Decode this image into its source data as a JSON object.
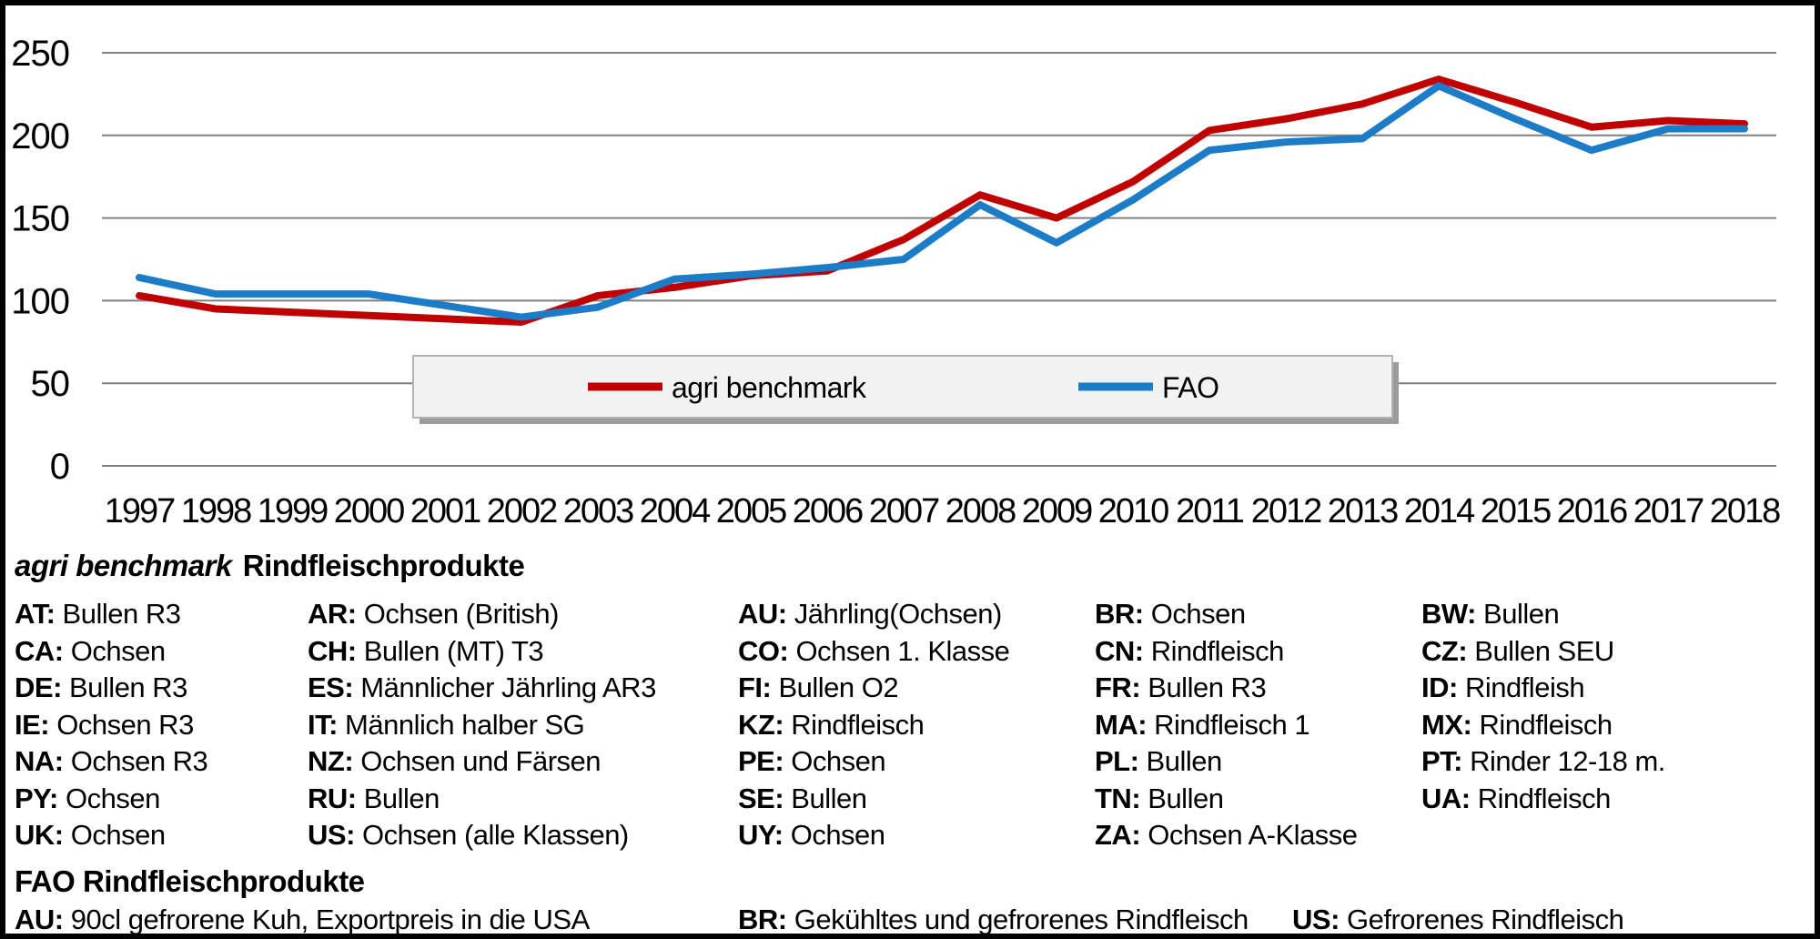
{
  "chart_data": {
    "type": "line",
    "x": [
      1997,
      1998,
      1999,
      2000,
      2001,
      2002,
      2003,
      2004,
      2005,
      2006,
      2007,
      2008,
      2009,
      2010,
      2011,
      2012,
      2013,
      2014,
      2015,
      2016,
      2017,
      2018
    ],
    "series": [
      {
        "name": "agri benchmark",
        "color": "#c00000",
        "values": [
          103,
          95,
          93,
          91,
          89,
          87,
          103,
          108,
          115,
          118,
          137,
          164,
          150,
          172,
          203,
          210,
          219,
          234,
          220,
          205,
          209,
          207
        ]
      },
      {
        "name": "FAO",
        "color": "#1d7cc8",
        "values": [
          114,
          104,
          104,
          104,
          97,
          90,
          96,
          113,
          116,
          120,
          125,
          158,
          135,
          161,
          191,
          196,
          198,
          230,
          210,
          191,
          204,
          204
        ]
      }
    ],
    "title": "",
    "xlabel": "",
    "ylabel": "",
    "ylim": [
      0,
      250
    ],
    "yticks": [
      0,
      50,
      100,
      150,
      200,
      250
    ],
    "grid": true,
    "gridline_color": "#7f7f7f",
    "legend_position": "inside-bottom-center",
    "legend_fill": "#f2f2f2",
    "legend_border": "#b3b3b3",
    "legend_shadow": "#9b9b9b"
  },
  "products_agri": {
    "title_italic": "agri benchmark",
    "title_rest": "Rindfleischprodukte",
    "rows": [
      [
        {
          "code": "AT",
          "desc": "Bullen R3"
        },
        {
          "code": "AR",
          "desc": "Ochsen (British)"
        },
        {
          "code": "AU",
          "desc": "Jährling(Ochsen)"
        },
        {
          "code": "BR",
          "desc": "Ochsen"
        },
        {
          "code": "BW",
          "desc": "Bullen"
        }
      ],
      [
        {
          "code": "CA",
          "desc": "Ochsen"
        },
        {
          "code": "CH",
          "desc": "Bullen (MT) T3"
        },
        {
          "code": "CO",
          "desc": "Ochsen 1. Klasse"
        },
        {
          "code": "CN",
          "desc": "Rindfleisch"
        },
        {
          "code": "CZ",
          "desc": "Bullen SEU"
        }
      ],
      [
        {
          "code": "DE",
          "desc": "Bullen R3"
        },
        {
          "code": "ES",
          "desc": "Männlicher Jährling AR3"
        },
        {
          "code": "FI",
          "desc": "Bullen O2"
        },
        {
          "code": "FR",
          "desc": "Bullen R3"
        },
        {
          "code": "ID",
          "desc": "Rindfleish"
        }
      ],
      [
        {
          "code": "IE",
          "desc": "Ochsen R3"
        },
        {
          "code": "IT",
          "desc": "Männlich halber SG"
        },
        {
          "code": "KZ",
          "desc": "Rindfleisch"
        },
        {
          "code": "MA",
          "desc": "Rindfleisch 1"
        },
        {
          "code": "MX",
          "desc": "Rindfleisch"
        }
      ],
      [
        {
          "code": "NA",
          "desc": "Ochsen R3"
        },
        {
          "code": "NZ",
          "desc": "Ochsen und Färsen"
        },
        {
          "code": "PE",
          "desc": "Ochsen"
        },
        {
          "code": "PL",
          "desc": "Bullen"
        },
        {
          "code": "PT",
          "desc": "Rinder 12-18 m."
        }
      ],
      [
        {
          "code": "PY",
          "desc": "Ochsen"
        },
        {
          "code": "RU",
          "desc": "Bullen"
        },
        {
          "code": "SE",
          "desc": "Bullen"
        },
        {
          "code": "TN",
          "desc": "Bullen"
        },
        {
          "code": "UA",
          "desc": "Rindfleisch"
        }
      ],
      [
        {
          "code": "UK",
          "desc": "Ochsen"
        },
        {
          "code": "US",
          "desc": "Ochsen (alle Klassen)"
        },
        {
          "code": "UY",
          "desc": "Ochsen"
        },
        {
          "code": "ZA",
          "desc": "Ochsen A-Klasse"
        },
        null
      ]
    ]
  },
  "products_fao": {
    "title": "FAO Rindfleischprodukte",
    "entries": [
      {
        "code": "AU",
        "desc": "90cl gefrorene Kuh, Exportpreis in die USA"
      },
      {
        "code": "BR",
        "desc": "Gekühltes und gefrorenes Rindfleisch"
      },
      {
        "code": "US",
        "desc": "Gefrorenes Rindfleisch"
      }
    ]
  }
}
